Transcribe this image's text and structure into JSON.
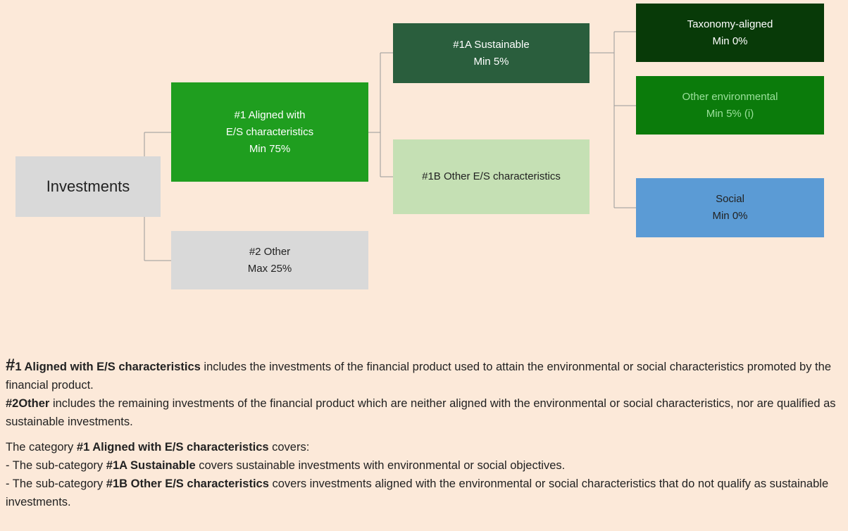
{
  "nodes": [
    {
      "lines": [
        "Investments"
      ],
      "color": "#d9d9d9",
      "text_color": "#222222"
    },
    {
      "lines": [
        "#1 Aligned with",
        "E/S characteristics",
        "Min 75%"
      ],
      "color": "#1f9e1f",
      "text_color": "#ffffff"
    },
    {
      "lines": [
        "#2 Other",
        "Max 25%"
      ],
      "color": "#d9d9d9",
      "text_color": "#222222"
    },
    {
      "lines": [
        "#1A Sustainable",
        "Min 5%"
      ],
      "color": "#2a5e3d",
      "text_color": "#ffffff"
    },
    {
      "lines": [
        "#1B Other E/S characteristics"
      ],
      "color": "#c5e0b4",
      "text_color": "#222222"
    },
    {
      "lines": [
        "Taxonomy-aligned",
        "Min 0%"
      ],
      "color": "#083a08",
      "text_color": "#ffffff"
    },
    {
      "lines": [
        "Other environmental",
        "Min 5% (i)"
      ],
      "color": "#0b7b0b",
      "text_color": "#9be09b"
    },
    {
      "lines": [
        "Social",
        "Min 0%"
      ],
      "color": "#5b9bd5",
      "text_color": "#222222"
    }
  ],
  "notes": [
    [
      {
        "text": "#",
        "bold": true,
        "large": true
      },
      {
        "text": "1 Aligned with E/S characteristics",
        "bold": true
      },
      {
        "text": " includes the investments of the financial product used to attain the environmental or social characteristics promoted by the financial product.",
        "bold": false
      }
    ],
    [
      {
        "text": "#2Other",
        "bold": true
      },
      {
        "text": " includes the remaining investments of the financial product which are neither aligned with the environmental or social characteristics, nor are qualified as sustainable investments.",
        "bold": false
      }
    ],
    [
      {
        "text": "The category ",
        "bold": false
      },
      {
        "text": "#1 Aligned with E/S characteristics",
        "bold": true
      },
      {
        "text": " covers:",
        "bold": false
      }
    ],
    [
      {
        "text": "-  The sub-category ",
        "bold": false
      },
      {
        "text": "#1A Sustainable",
        "bold": true
      },
      {
        "text": " covers sustainable investments with environmental or social objectives.",
        "bold": false
      }
    ],
    [
      {
        "text": "- The sub-category ",
        "bold": false
      },
      {
        "text": "#1B Other E/S characteristics",
        "bold": true
      },
      {
        "text": " covers investments aligned with the environmental or social characteristics that do not qualify as sustainable investments.",
        "bold": false
      }
    ]
  ]
}
